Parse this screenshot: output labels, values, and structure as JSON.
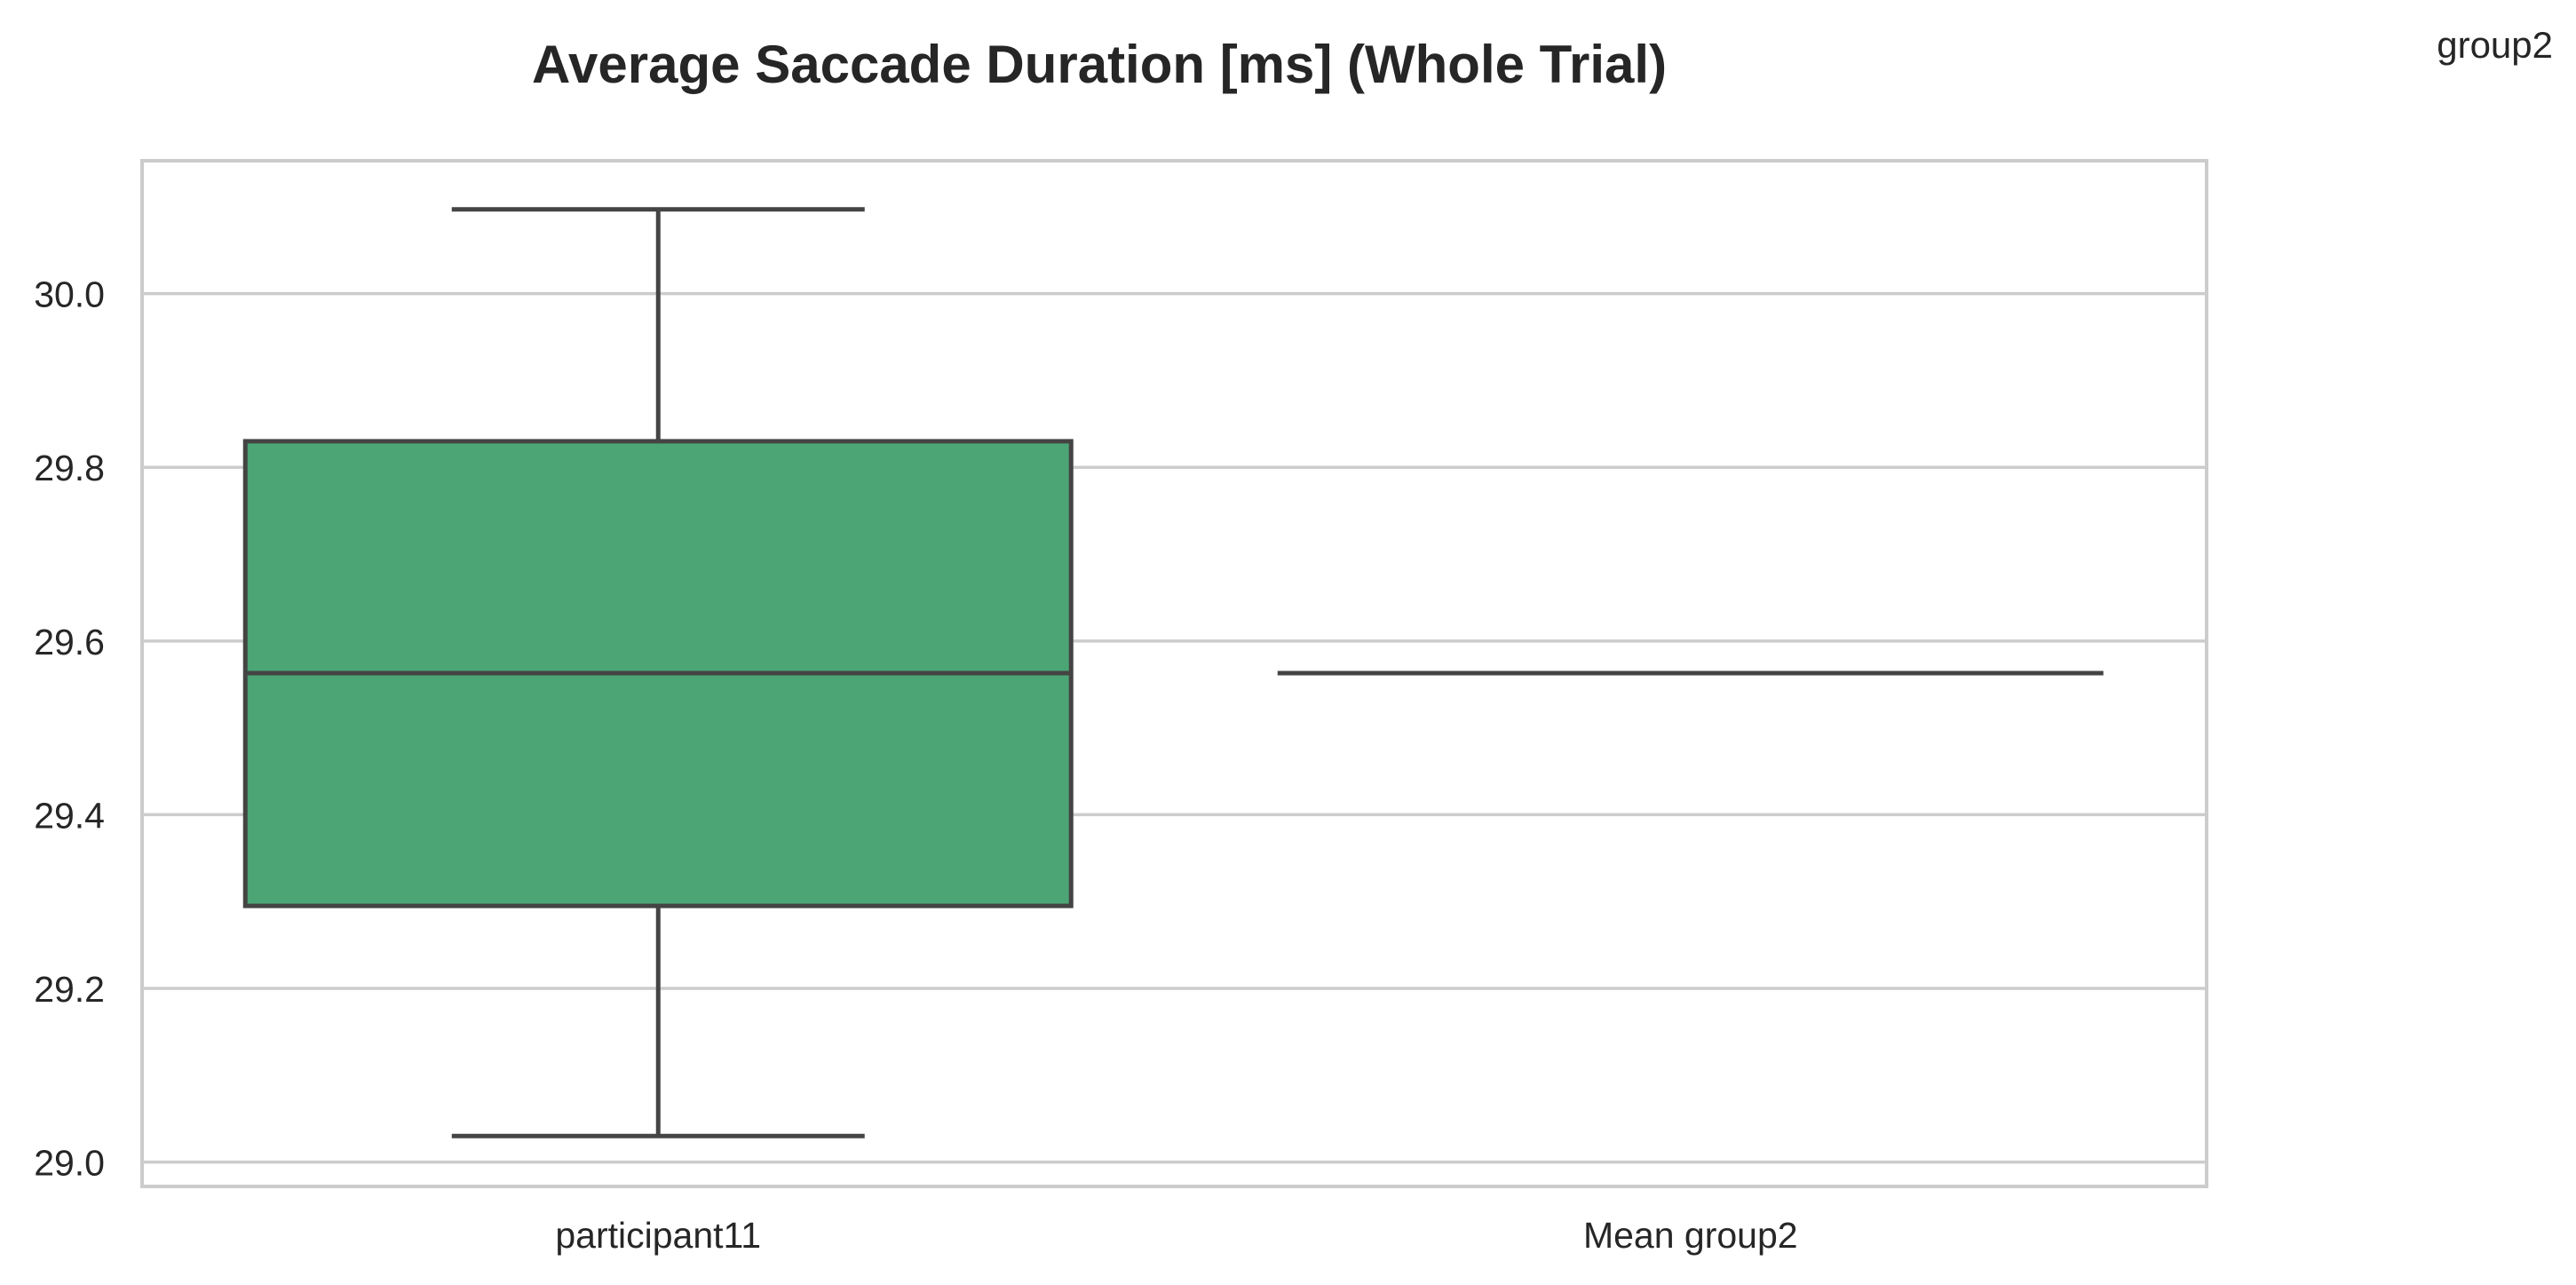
{
  "corner_label": "group2",
  "chart_data": {
    "type": "box",
    "title": "Average Saccade Duration [ms] (Whole Trial)",
    "xlabel": "",
    "ylabel": "",
    "ylim": [
      28.972,
      30.153
    ],
    "yticks": [
      29.0,
      29.2,
      29.4,
      29.6,
      29.8,
      30.0
    ],
    "ytick_labels": [
      "29.0",
      "29.2",
      "29.4",
      "29.6",
      "29.8",
      "30.0"
    ],
    "grid": true,
    "categories": [
      "participant11",
      "Mean group2"
    ],
    "boxes": [
      {
        "category": "participant11",
        "whisker_low": 29.03,
        "q1": 29.295,
        "median": 29.563,
        "q3": 29.83,
        "whisker_high": 30.097,
        "fill": "#4ca574"
      },
      {
        "category": "Mean group2",
        "whisker_low": 29.563,
        "q1": 29.563,
        "median": 29.563,
        "q3": 29.563,
        "whisker_high": 29.563,
        "fill": "#4ca574"
      }
    ],
    "colors": {
      "box_fill": "#4ca574",
      "box_line": "#444444",
      "grid": "#cccccc",
      "frame": "#cccccc"
    }
  }
}
